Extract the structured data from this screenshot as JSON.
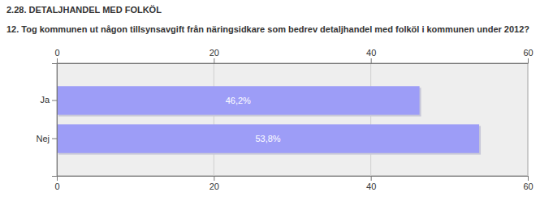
{
  "chart_data": {
    "type": "bar",
    "orientation": "horizontal",
    "title": "2.28. DETALJHANDEL MED FOLKÖL",
    "subtitle": "12. Tog kommunen ut någon tillsynsavgift från näringsidkare som bedrev detaljhandel med folköl i kommunen under 2012?",
    "categories": [
      "Ja",
      "Nej"
    ],
    "values": [
      46.2,
      53.8
    ],
    "value_labels": [
      "46,2%",
      "53,8%"
    ],
    "color": "#9d9df7",
    "xlim": [
      0,
      60
    ],
    "xticks": [
      0,
      20,
      40,
      60
    ],
    "grid": true,
    "data_labels": true
  }
}
